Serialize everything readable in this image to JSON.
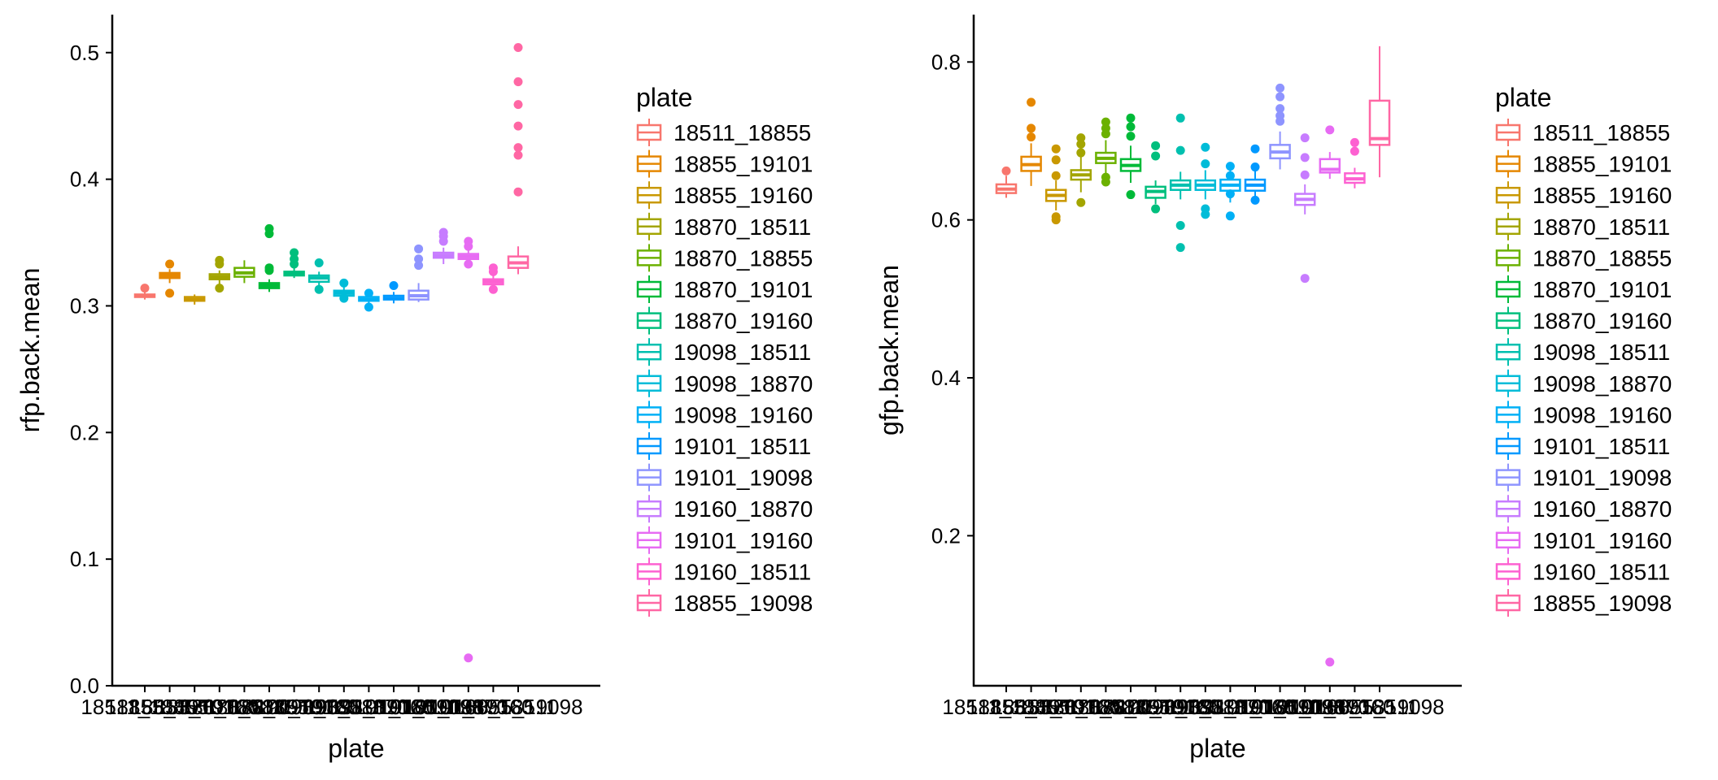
{
  "chart_data": [
    {
      "type": "boxplot",
      "ylabel": "rfp.back.mean",
      "xlabel": "plate",
      "ylim": [
        0,
        0.53
      ],
      "yticks": [
        0.0,
        0.1,
        0.2,
        0.3,
        0.4,
        0.5
      ],
      "ytick_labels": [
        "0.0",
        "0.1",
        "0.2",
        "0.3",
        "0.4",
        "0.5"
      ],
      "legend_title": "plate",
      "categories": [
        "18511_18855",
        "18855_19101",
        "18855_19160",
        "18870_18511",
        "18870_18855",
        "18870_19101",
        "18870_19160",
        "19098_18511",
        "19098_18870",
        "19098_19160",
        "19101_18511",
        "19101_19098",
        "19160_18870",
        "19101_19160",
        "19160_18511",
        "18855_19098"
      ],
      "colors": [
        "#F8766D",
        "#E58700",
        "#C99800",
        "#A3A500",
        "#6BB100",
        "#00BA38",
        "#00BF7D",
        "#00C0AF",
        "#00BCD8",
        "#00B0F6",
        "#0099FF",
        "#8E94FF",
        "#C77CFF",
        "#E76BF3",
        "#FD61D1",
        "#FF67A4"
      ],
      "boxes": [
        {
          "lw": 0.305,
          "q1": 0.307,
          "med": 0.308,
          "q3": 0.309,
          "uw": 0.311,
          "out": [
            0.314
          ]
        },
        {
          "lw": 0.318,
          "q1": 0.322,
          "med": 0.324,
          "q3": 0.326,
          "uw": 0.329,
          "out": [
            0.333,
            0.31
          ]
        },
        {
          "lw": 0.301,
          "q1": 0.304,
          "med": 0.305,
          "q3": 0.307,
          "uw": 0.309,
          "out": []
        },
        {
          "lw": 0.317,
          "q1": 0.321,
          "med": 0.323,
          "q3": 0.325,
          "uw": 0.328,
          "out": [
            0.336,
            0.333,
            0.314
          ]
        },
        {
          "lw": 0.318,
          "q1": 0.323,
          "med": 0.326,
          "q3": 0.33,
          "uw": 0.336,
          "out": []
        },
        {
          "lw": 0.311,
          "q1": 0.314,
          "med": 0.316,
          "q3": 0.318,
          "uw": 0.321,
          "out": [
            0.361,
            0.357,
            0.33,
            0.328
          ]
        },
        {
          "lw": 0.322,
          "q1": 0.324,
          "med": 0.325,
          "q3": 0.327,
          "uw": 0.33,
          "out": [
            0.342,
            0.337,
            0.333
          ]
        },
        {
          "lw": 0.314,
          "q1": 0.319,
          "med": 0.322,
          "q3": 0.324,
          "uw": 0.327,
          "out": [
            0.334,
            0.313
          ]
        },
        {
          "lw": 0.304,
          "q1": 0.308,
          "med": 0.31,
          "q3": 0.312,
          "uw": 0.316,
          "out": [
            0.318,
            0.306
          ]
        },
        {
          "lw": 0.302,
          "q1": 0.304,
          "med": 0.305,
          "q3": 0.307,
          "uw": 0.309,
          "out": [
            0.31,
            0.299
          ]
        },
        {
          "lw": 0.302,
          "q1": 0.305,
          "med": 0.306,
          "q3": 0.308,
          "uw": 0.311,
          "out": [
            0.316
          ]
        },
        {
          "lw": 0.303,
          "q1": 0.305,
          "med": 0.308,
          "q3": 0.312,
          "uw": 0.318,
          "out": [
            0.345,
            0.337,
            0.332
          ]
        },
        {
          "lw": 0.333,
          "q1": 0.338,
          "med": 0.34,
          "q3": 0.342,
          "uw": 0.346,
          "out": [
            0.358,
            0.355,
            0.351
          ]
        },
        {
          "lw": 0.334,
          "q1": 0.337,
          "med": 0.339,
          "q3": 0.341,
          "uw": 0.344,
          "out": [
            0.351,
            0.347,
            0.333,
            0.022
          ]
        },
        {
          "lw": 0.313,
          "q1": 0.317,
          "med": 0.319,
          "q3": 0.321,
          "uw": 0.324,
          "out": [
            0.33,
            0.327,
            0.313
          ]
        },
        {
          "lw": 0.325,
          "q1": 0.33,
          "med": 0.334,
          "q3": 0.339,
          "uw": 0.347,
          "out": [
            0.504,
            0.477,
            0.459,
            0.442,
            0.425,
            0.419,
            0.39
          ]
        }
      ]
    },
    {
      "type": "boxplot",
      "ylabel": "gfp.back.mean",
      "xlabel": "plate",
      "ylim": [
        0.01,
        0.86
      ],
      "yticks": [
        0.2,
        0.4,
        0.6,
        0.8
      ],
      "ytick_labels": [
        "0.2",
        "0.4",
        "0.6",
        "0.8"
      ],
      "legend_title": "plate",
      "categories": [
        "18511_18855",
        "18855_19101",
        "18855_19160",
        "18870_18511",
        "18870_18855",
        "18870_19101",
        "18870_19160",
        "19098_18511",
        "19098_18870",
        "19098_19160",
        "19101_18511",
        "19101_19098",
        "19160_18870",
        "19101_19160",
        "19160_18511",
        "18855_19098"
      ],
      "colors": [
        "#F8766D",
        "#E58700",
        "#C99800",
        "#A3A500",
        "#6BB100",
        "#00BA38",
        "#00BF7D",
        "#00C0AF",
        "#00BCD8",
        "#00B0F6",
        "#0099FF",
        "#8E94FF",
        "#C77CFF",
        "#E76BF3",
        "#FD61D1",
        "#FF67A4"
      ],
      "boxes": [
        {
          "lw": 0.628,
          "q1": 0.634,
          "med": 0.639,
          "q3": 0.645,
          "uw": 0.656,
          "out": [
            0.662
          ]
        },
        {
          "lw": 0.643,
          "q1": 0.662,
          "med": 0.67,
          "q3": 0.68,
          "uw": 0.697,
          "out": [
            0.749,
            0.716,
            0.705
          ]
        },
        {
          "lw": 0.612,
          "q1": 0.624,
          "med": 0.631,
          "q3": 0.638,
          "uw": 0.65,
          "out": [
            0.69,
            0.676,
            0.656,
            0.604,
            0.6
          ]
        },
        {
          "lw": 0.635,
          "q1": 0.651,
          "med": 0.657,
          "q3": 0.663,
          "uw": 0.68,
          "out": [
            0.704,
            0.696,
            0.685,
            0.622
          ]
        },
        {
          "lw": 0.658,
          "q1": 0.672,
          "med": 0.678,
          "q3": 0.685,
          "uw": 0.701,
          "out": [
            0.724,
            0.716,
            0.709,
            0.654,
            0.648
          ]
        },
        {
          "lw": 0.647,
          "q1": 0.662,
          "med": 0.669,
          "q3": 0.677,
          "uw": 0.694,
          "out": [
            0.729,
            0.718,
            0.706,
            0.632
          ]
        },
        {
          "lw": 0.62,
          "q1": 0.628,
          "med": 0.636,
          "q3": 0.642,
          "uw": 0.65,
          "out": [
            0.694,
            0.681,
            0.614
          ]
        },
        {
          "lw": 0.626,
          "q1": 0.638,
          "med": 0.644,
          "q3": 0.65,
          "uw": 0.661,
          "out": [
            0.729,
            0.688,
            0.593,
            0.565
          ]
        },
        {
          "lw": 0.626,
          "q1": 0.638,
          "med": 0.644,
          "q3": 0.65,
          "uw": 0.663,
          "out": [
            0.692,
            0.671,
            0.614,
            0.607
          ]
        },
        {
          "lw": 0.622,
          "q1": 0.637,
          "med": 0.644,
          "q3": 0.651,
          "uw": 0.666,
          "out": [
            0.668,
            0.656,
            0.633,
            0.605
          ]
        },
        {
          "lw": 0.626,
          "q1": 0.637,
          "med": 0.644,
          "q3": 0.651,
          "uw": 0.665,
          "out": [
            0.69,
            0.667,
            0.625
          ]
        },
        {
          "lw": 0.664,
          "q1": 0.678,
          "med": 0.686,
          "q3": 0.695,
          "uw": 0.712,
          "out": [
            0.767,
            0.756,
            0.741,
            0.732,
            0.725
          ]
        },
        {
          "lw": 0.607,
          "q1": 0.619,
          "med": 0.626,
          "q3": 0.633,
          "uw": 0.645,
          "out": [
            0.704,
            0.679,
            0.657,
            0.526
          ]
        },
        {
          "lw": 0.652,
          "q1": 0.66,
          "med": 0.664,
          "q3": 0.677,
          "uw": 0.686,
          "out": [
            0.714,
            0.04
          ]
        },
        {
          "lw": 0.64,
          "q1": 0.647,
          "med": 0.652,
          "q3": 0.659,
          "uw": 0.666,
          "out": [
            0.698,
            0.687
          ]
        },
        {
          "lw": 0.654,
          "q1": 0.695,
          "med": 0.703,
          "q3": 0.751,
          "uw": 0.82,
          "out": []
        }
      ]
    }
  ]
}
